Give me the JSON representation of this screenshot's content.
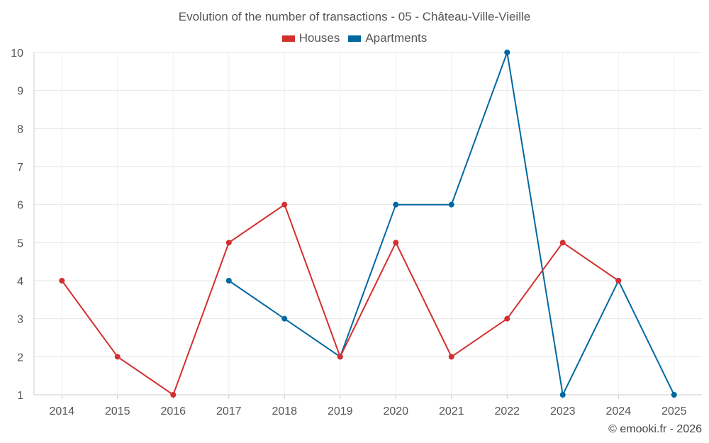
{
  "chart_data": {
    "type": "line",
    "title": "Evolution of the number of transactions - 05 - Château-Ville-Vieille",
    "xlabel": "",
    "ylabel": "",
    "categories": [
      "2014",
      "2015",
      "2016",
      "2017",
      "2018",
      "2019",
      "2020",
      "2021",
      "2022",
      "2023",
      "2024",
      "2025"
    ],
    "ylim": [
      1,
      10
    ],
    "yticks": [
      "1",
      "2",
      "3",
      "4",
      "5",
      "6",
      "7",
      "8",
      "9",
      "10"
    ],
    "grid": true,
    "legend_position": "top-center",
    "series": [
      {
        "name": "Houses",
        "color": "#d32f2f",
        "values": [
          4,
          2,
          1,
          5,
          6,
          2,
          5,
          2,
          3,
          5,
          4,
          null
        ]
      },
      {
        "name": "Apartments",
        "color": "#0068a1",
        "values": [
          null,
          null,
          null,
          4,
          3,
          2,
          6,
          6,
          10,
          1,
          4,
          1
        ]
      }
    ]
  },
  "credit": "© emooki.fr - 2026"
}
